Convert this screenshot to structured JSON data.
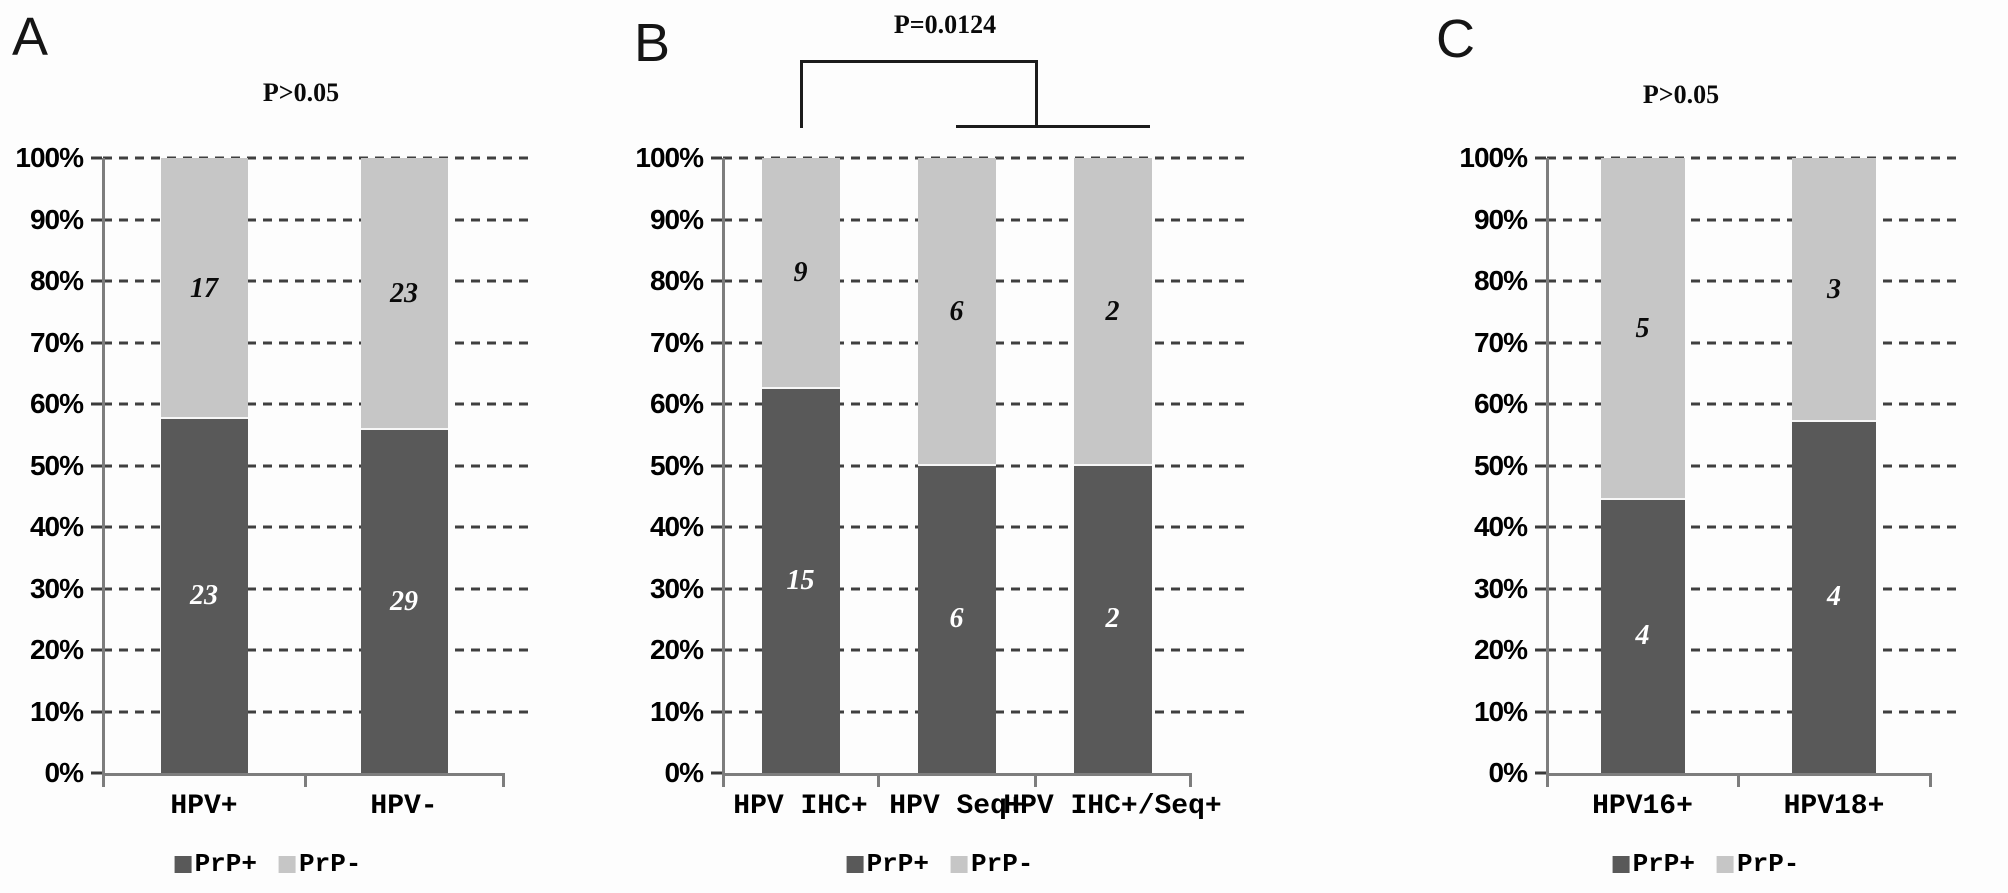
{
  "figure_colors": {
    "prp_positive_fill": "#595959",
    "prp_negative_fill": "#c6c6c6",
    "axis_line": "#7d7d7d",
    "gridline": "#3f3f3f",
    "background": "#fdfdfd",
    "dark_segment_label_text": "#ffffff",
    "light_segment_label_text": "#0a0a0a"
  },
  "chart_data": [
    {
      "type": "bar",
      "stacked": true,
      "panel": "A",
      "title": "P>0.05",
      "categories": [
        "HPV+",
        "HPV-"
      ],
      "series": [
        {
          "name": "PrP+",
          "color": "#595959",
          "values": [
            23,
            29
          ]
        },
        {
          "name": "PrP-",
          "color": "#c6c6c6",
          "values": [
            17,
            23
          ]
        }
      ],
      "y_ticks": [
        "0%",
        "10%",
        "20%",
        "30%",
        "40%",
        "50%",
        "60%",
        "70%",
        "80%",
        "90%",
        "100%"
      ],
      "ylim": [
        0,
        100
      ],
      "ylabel_format": "percent_stacked",
      "grid": "dashed-horizontal",
      "legend_position": "bottom"
    },
    {
      "type": "bar",
      "stacked": true,
      "panel": "B",
      "title": "P=0.0124",
      "categories": [
        "HPV IHC+",
        "HPV Seq+",
        "HPV IHC+/Seq+"
      ],
      "series": [
        {
          "name": "PrP+",
          "color": "#595959",
          "values": [
            15,
            6,
            2
          ]
        },
        {
          "name": "PrP-",
          "color": "#c6c6c6",
          "values": [
            9,
            6,
            2
          ]
        }
      ],
      "y_ticks": [
        "0%",
        "10%",
        "20%",
        "30%",
        "40%",
        "50%",
        "60%",
        "70%",
        "80%",
        "90%",
        "100%"
      ],
      "ylim": [
        0,
        100
      ],
      "ylabel_format": "percent_stacked",
      "grid": "dashed-horizontal",
      "legend_position": "bottom",
      "significance_bracket": {
        "label": "P=0.0124",
        "group1": "HPV IHC+",
        "group2": [
          "HPV Seq+",
          "HPV IHC+/Seq+"
        ]
      }
    },
    {
      "type": "bar",
      "stacked": true,
      "panel": "C",
      "title": "P>0.05",
      "categories": [
        "HPV16+",
        "HPV18+"
      ],
      "series": [
        {
          "name": "PrP+",
          "color": "#595959",
          "values": [
            4,
            4
          ]
        },
        {
          "name": "PrP-",
          "color": "#c6c6c6",
          "values": [
            5,
            3
          ]
        }
      ],
      "y_ticks": [
        "0%",
        "10%",
        "20%",
        "30%",
        "40%",
        "50%",
        "60%",
        "70%",
        "80%",
        "90%",
        "100%"
      ],
      "ylim": [
        0,
        100
      ],
      "ylabel_format": "percent_stacked",
      "grid": "dashed-horizontal",
      "legend_position": "bottom"
    }
  ]
}
